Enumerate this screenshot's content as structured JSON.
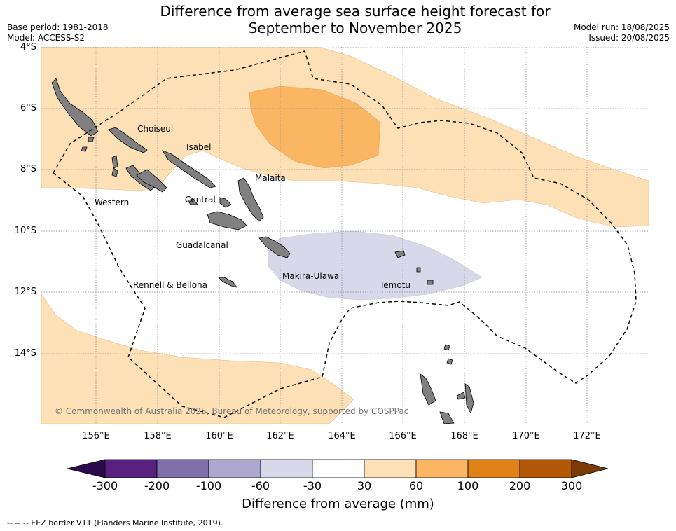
{
  "title_line1": "Difference from average sea surface height forecast for",
  "title_line2": "September to November 2025",
  "base_period": "Base period: 1981-2018",
  "model": "Model: ACCESS-S2",
  "model_run": "Model run: 18/08/2025",
  "issued": "Issued: 20/08/2025",
  "y_ticks": [
    "4°S",
    "6°S",
    "8°S",
    "10°S",
    "12°S",
    "14°S"
  ],
  "x_ticks": [
    "156°E",
    "158°E",
    "160°E",
    "162°E",
    "164°E",
    "166°E",
    "168°E",
    "170°E",
    "172°E"
  ],
  "provinces": {
    "choiseul": "Choiseul",
    "isabel": "Isabel",
    "malaita": "Malaita",
    "western": "Western",
    "central": "Central",
    "guadalcanal": "Guadalcanal",
    "makira": "Makira-Ulawa",
    "rennell": "Rennell & Bellona",
    "temotu": "Temotu"
  },
  "copyright": "© Commonwealth of Australia 2025, Bureau of Meteorology, supported by COSPPac",
  "colorbar": {
    "title": "Difference from average (mm)",
    "labels": [
      "-300",
      "-200",
      "-100",
      "-60",
      "-30",
      "30",
      "60",
      "100",
      "200",
      "300"
    ],
    "colors": [
      "#5a2080",
      "#7f6faa",
      "#aea7cf",
      "#d8d8ea",
      "#ffffff",
      "#fde0b5",
      "#fbb664",
      "#e08217",
      "#b35806"
    ],
    "under_color": "#2d0a4e",
    "over_color": "#7a3b06"
  },
  "footnote": "-- -- -- EEZ border V11 (Flanders Marine Institute, 2019).",
  "colors": {
    "land": "#808080",
    "grid": "#8a8a8a"
  }
}
